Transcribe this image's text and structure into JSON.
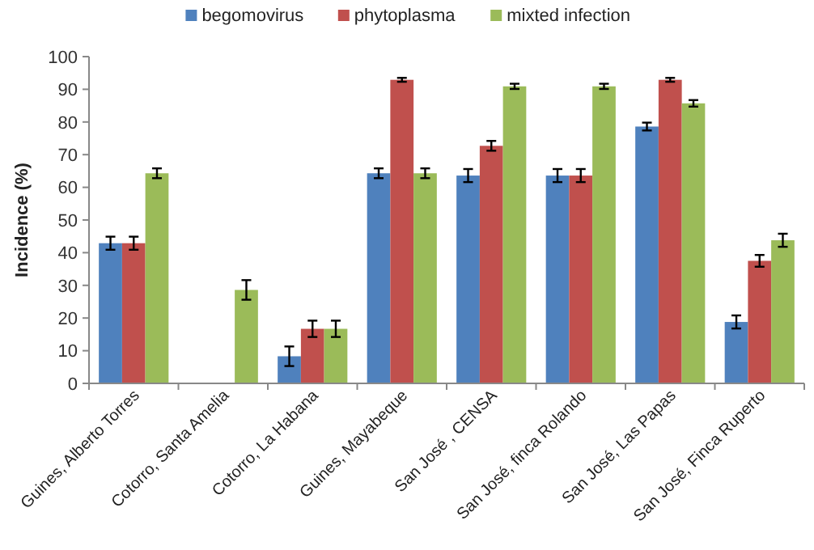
{
  "chart_data": {
    "type": "bar",
    "ylabel": "Incidence (%)",
    "categories": [
      "Guines, Alberto Torres",
      "Cotorro, Santa Amelia",
      "Cotorro, La Habana",
      "Guines, Mayabeque",
      "San José , CENSA",
      "San José, finca Rolando",
      "San José, Las Papas",
      "San José, Finca Ruperto"
    ],
    "series": [
      {
        "name": "begomovirus",
        "color": "#4f81bd",
        "values": [
          42.9,
          null,
          8.3,
          64.3,
          63.6,
          63.6,
          78.6,
          18.8
        ],
        "errors": [
          2,
          null,
          3,
          1.5,
          2,
          2,
          1.2,
          2
        ]
      },
      {
        "name": "phytoplasma",
        "color": "#c0504d",
        "values": [
          42.9,
          null,
          16.7,
          92.9,
          72.7,
          63.6,
          92.9,
          37.5
        ],
        "errors": [
          2,
          null,
          2.5,
          0.6,
          1.5,
          2,
          0.6,
          1.8
        ]
      },
      {
        "name": "mixted infection",
        "color": "#9bbb59",
        "values": [
          64.3,
          28.6,
          16.7,
          64.3,
          90.9,
          90.9,
          85.7,
          43.8
        ],
        "errors": [
          1.5,
          3,
          2.5,
          1.5,
          0.8,
          0.8,
          1,
          2
        ]
      }
    ],
    "ylim": [
      0,
      100
    ],
    "yticks": [
      0,
      10,
      20,
      30,
      40,
      50,
      60,
      70,
      80,
      90,
      100
    ],
    "grid": false,
    "legend": "top"
  }
}
